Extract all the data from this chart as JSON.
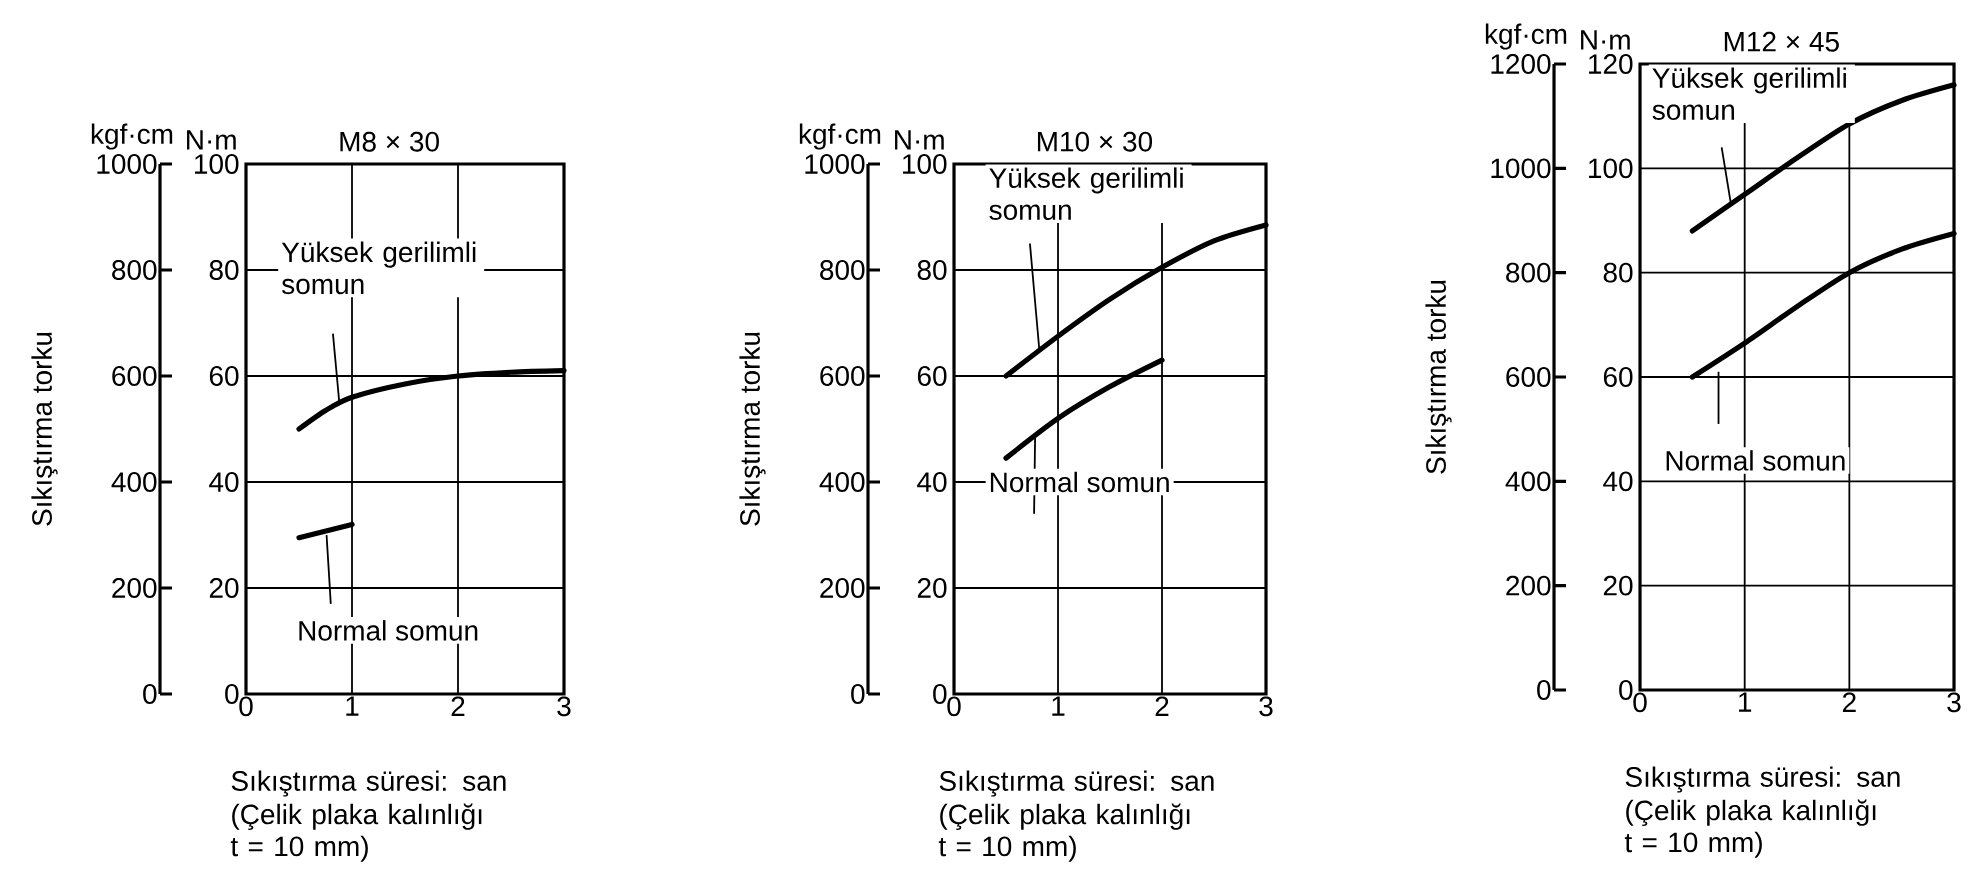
{
  "chart_data": [
    {
      "type": "line",
      "title": "M8 × 30",
      "xlabel": "Sıkıştırma süresi: san",
      "y2label": "Sıkıştırma torku",
      "xlim": [
        0,
        3
      ],
      "xticks": [
        0,
        1,
        2,
        3
      ],
      "ylim": [
        0,
        100
      ],
      "yticks": [
        0,
        20,
        40,
        60,
        80,
        100
      ],
      "y2lim": [
        0,
        1000
      ],
      "y2ticks": [
        0,
        200,
        400,
        600,
        800,
        1000
      ],
      "grid": true,
      "marker": "none",
      "line_style": "solid",
      "annotations": [
        "kgf·cm",
        "N·m",
        "(Çelik plaka kalınlığı t = 10 mm)"
      ],
      "series": [
        {
          "name": "Yüksek gerilimli somun",
          "color": "#000000",
          "x": [
            0.5,
            0.75,
            1,
            1.5,
            2,
            2.5,
            3
          ],
          "values": [
            50,
            53.5,
            56,
            58.5,
            60,
            60.7,
            61
          ]
        },
        {
          "name": "Normal somun",
          "color": "#000000",
          "x": [
            0.5,
            1
          ],
          "values": [
            29.5,
            32
          ]
        }
      ]
    },
    {
      "type": "line",
      "title": "M10 × 30",
      "xlabel": "Sıkıştırma süresi: san",
      "y2label": "Sıkıştırma torku",
      "xlim": [
        0,
        3
      ],
      "xticks": [
        0,
        1,
        2,
        3
      ],
      "ylim": [
        0,
        100
      ],
      "yticks": [
        0,
        20,
        40,
        60,
        80,
        100
      ],
      "y2lim": [
        0,
        1000
      ],
      "y2ticks": [
        0,
        200,
        400,
        600,
        800,
        1000
      ],
      "grid": true,
      "marker": "none",
      "line_style": "solid",
      "annotations": [
        "kgf·cm",
        "N·m",
        "(Çelik plaka kalınlığı t = 10 mm)"
      ],
      "series": [
        {
          "name": "Yüksek gerilimli somun",
          "color": "#000000",
          "x": [
            0.5,
            1,
            1.5,
            2,
            2.5,
            3
          ],
          "values": [
            60,
            67.5,
            74.5,
            80.5,
            85.5,
            88.5
          ]
        },
        {
          "name": "Normal somun",
          "color": "#000000",
          "x": [
            0.5,
            1,
            1.5,
            2
          ],
          "values": [
            44.5,
            52,
            58,
            63
          ]
        }
      ]
    },
    {
      "type": "line",
      "title": "M12 × 45",
      "xlabel": "Sıkıştırma süresi: san",
      "y2label": "Sıkıştırma torku",
      "xlim": [
        0,
        3
      ],
      "xticks": [
        0,
        1,
        2,
        3
      ],
      "ylim": [
        0,
        120
      ],
      "yticks": [
        0,
        20,
        40,
        60,
        80,
        100,
        120
      ],
      "y2lim": [
        0,
        1200
      ],
      "y2ticks": [
        0,
        200,
        400,
        600,
        800,
        1000,
        1200
      ],
      "grid": true,
      "marker": "none",
      "line_style": "solid",
      "annotations": [
        "kgf·cm",
        "N·m",
        "(Çelik plaka kalınlığı t = 10 mm)"
      ],
      "series": [
        {
          "name": "Yüksek gerilimli somun",
          "color": "#000000",
          "x": [
            0.5,
            1,
            1.5,
            2,
            2.5,
            3
          ],
          "values": [
            88,
            95,
            102,
            108.5,
            113,
            116
          ]
        },
        {
          "name": "Normal somun",
          "color": "#000000",
          "x": [
            0.5,
            1,
            1.5,
            2,
            2.5,
            3
          ],
          "values": [
            60,
            66.5,
            73.5,
            80,
            84.5,
            87.5
          ]
        }
      ]
    }
  ]
}
